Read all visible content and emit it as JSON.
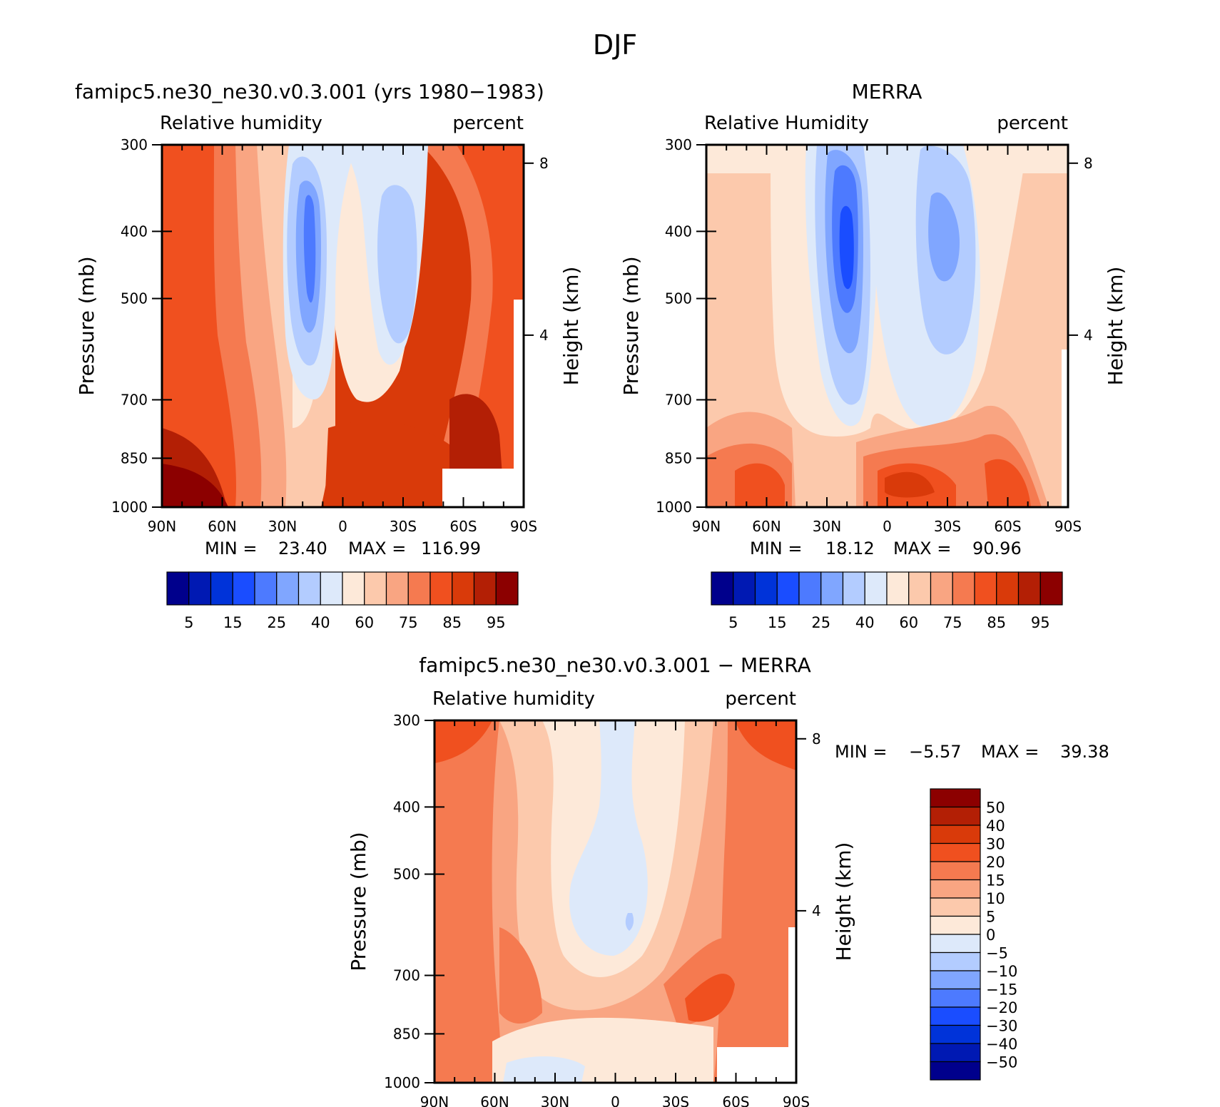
{
  "figure": {
    "title": "DJF"
  },
  "colors": {
    "rh_levels": [
      "#00008c",
      "#0019b3",
      "#0033d9",
      "#1a4dff",
      "#4d7aff",
      "#80a6ff",
      "#b3ccff",
      "#dde9fa",
      "#fde9d9",
      "#fcc9ac",
      "#f9a582",
      "#f57a50",
      "#f0501f",
      "#d93a0a",
      "#b31f05",
      "#8c0000"
    ],
    "diff_levels": [
      "#00008c",
      "#0019b3",
      "#0033d9",
      "#1a4dff",
      "#4d7aff",
      "#80a6ff",
      "#b3ccff",
      "#dde9fa",
      "#fde9d9",
      "#fcc9ac",
      "#f9a582",
      "#f57a50",
      "#f0501f",
      "#d93a0a",
      "#b31f05",
      "#8c0000"
    ]
  },
  "chart_data": [
    {
      "id": "model",
      "type": "contour",
      "title": "famipc5.ne30_ne30.v0.3.001 (yrs 1980−1983)",
      "left_label": "Relative humidity",
      "right_label": "percent",
      "ylabel": "Pressure (mb)",
      "ylabel2": "Height (km)",
      "xticks": [
        "90N",
        "60N",
        "30N",
        "0",
        "30S",
        "60S",
        "90S"
      ],
      "yticks": [
        "300",
        "400",
        "500",
        "700",
        "850",
        "1000"
      ],
      "yticks_values": [
        300,
        400,
        500,
        700,
        850,
        1000
      ],
      "height_ticks": [
        "8",
        "4"
      ],
      "height_values": [
        8,
        4
      ],
      "stats": {
        "min_label": "MIN =",
        "min": "23.40",
        "max_label": "MAX =",
        "max": "116.99"
      },
      "colorbar_labels": [
        "5",
        "15",
        "25",
        "40",
        "60",
        "75",
        "85",
        "95"
      ],
      "levels": [
        5,
        10,
        15,
        20,
        25,
        30,
        40,
        50,
        60,
        70,
        75,
        80,
        85,
        90,
        95
      ],
      "ylim": [
        1000,
        300
      ],
      "xlim": [
        90,
        -90
      ]
    },
    {
      "id": "obs",
      "type": "contour",
      "title": "MERRA",
      "left_label": "Relative Humidity",
      "right_label": "percent",
      "ylabel": "Pressure (mb)",
      "ylabel2": "Height (km)",
      "xticks": [
        "90N",
        "60N",
        "30N",
        "0",
        "30S",
        "60S",
        "90S"
      ],
      "yticks": [
        "300",
        "400",
        "500",
        "700",
        "850",
        "1000"
      ],
      "yticks_values": [
        300,
        400,
        500,
        700,
        850,
        1000
      ],
      "height_ticks": [
        "8",
        "4"
      ],
      "height_values": [
        8,
        4
      ],
      "stats": {
        "min_label": "MIN =",
        "min": "18.12",
        "max_label": "MAX =",
        "max": "90.96"
      },
      "colorbar_labels": [
        "5",
        "15",
        "25",
        "40",
        "60",
        "75",
        "85",
        "95"
      ],
      "levels": [
        5,
        10,
        15,
        20,
        25,
        30,
        40,
        50,
        60,
        70,
        75,
        80,
        85,
        90,
        95
      ],
      "ylim": [
        1000,
        300
      ],
      "xlim": [
        90,
        -90
      ]
    },
    {
      "id": "diff",
      "type": "contour",
      "title": "famipc5.ne30_ne30.v0.3.001 − MERRA",
      "left_label": "Relative humidity",
      "right_label": "percent",
      "ylabel": "Pressure (mb)",
      "ylabel2": "Height (km)",
      "xticks": [
        "90N",
        "60N",
        "30N",
        "0",
        "30S",
        "60S",
        "90S"
      ],
      "yticks": [
        "300",
        "400",
        "500",
        "700",
        "850",
        "1000"
      ],
      "yticks_values": [
        300,
        400,
        500,
        700,
        850,
        1000
      ],
      "height_ticks": [
        "8",
        "4"
      ],
      "height_values": [
        8,
        4
      ],
      "stats": {
        "min_label": "MIN =",
        "min": "−5.57",
        "max_label": "MAX =",
        "max": "39.38"
      },
      "colorbar_labels": [
        "50",
        "40",
        "30",
        "20",
        "15",
        "10",
        "5",
        "0",
        "−5",
        "−10",
        "−15",
        "−20",
        "−30",
        "−40",
        "−50"
      ],
      "levels": [
        -50,
        -40,
        -30,
        -20,
        -15,
        -10,
        -5,
        0,
        5,
        10,
        15,
        20,
        30,
        40,
        50
      ],
      "ylim": [
        1000,
        300
      ],
      "xlim": [
        90,
        -90
      ]
    }
  ]
}
